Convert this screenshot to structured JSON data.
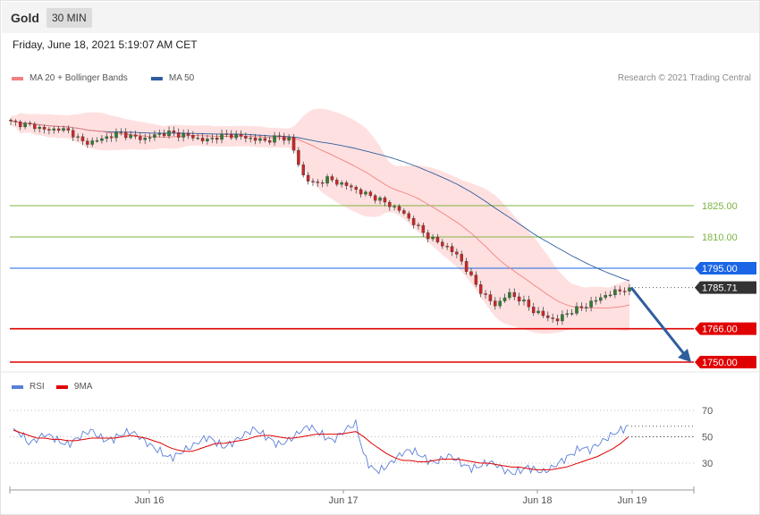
{
  "header": {
    "instrument": "Gold",
    "timeframe": "30 MIN"
  },
  "timestamp": "Friday, June 18, 2021 5:19:07 AM CET",
  "copyright": "Research © 2021 Trading Central",
  "colors": {
    "ma20": "#f08080",
    "ma50": "#2f5d9e",
    "bands": "#ffd6d6",
    "bull": "#2e7d32",
    "bear": "#c62828",
    "support": "#e00000",
    "resistance": "#7cb342",
    "pivot": "#1a66e6",
    "rsi": "#5b7fd8",
    "rsi_ma": "#e00000",
    "arrow": "#2f5d9e"
  },
  "chart_data": [
    {
      "type": "candlestick",
      "legend": [
        {
          "name": "MA 20 + Bollinger Bands",
          "color": "#f08080"
        },
        {
          "name": "MA 50",
          "color": "#2f5d9e"
        }
      ],
      "x_tick_labels": [
        "Jun 16",
        "Jun 17",
        "Jun 18",
        "Jun 19"
      ],
      "ylim": [
        1745,
        1873
      ],
      "close_path": [
        1865,
        1864,
        1863,
        1861,
        1862,
        1860,
        1855,
        1856,
        1858,
        1860,
        1858,
        1857,
        1859,
        1860,
        1859,
        1858,
        1856,
        1858,
        1859,
        1858,
        1857,
        1856,
        1858,
        1857,
        1840,
        1835,
        1838,
        1836,
        1834,
        1831,
        1829,
        1826,
        1823,
        1818,
        1812,
        1808,
        1805,
        1800,
        1790,
        1782,
        1777,
        1783,
        1780,
        1775,
        1772,
        1770,
        1774,
        1776,
        1779,
        1782,
        1784,
        1785.71
      ],
      "levels": [
        {
          "label": "1825.00",
          "value": 1825.0,
          "style": "resistance"
        },
        {
          "label": "1810.00",
          "value": 1810.0,
          "style": "resistance"
        },
        {
          "label": "1795.00",
          "value": 1795.0,
          "style": "pivot"
        },
        {
          "label": "1785.71",
          "value": 1785.71,
          "style": "last"
        },
        {
          "label": "1766.00",
          "value": 1766.0,
          "style": "support"
        },
        {
          "label": "1750.00",
          "value": 1750.0,
          "style": "support"
        }
      ],
      "arrow": {
        "from": 1785.71,
        "to": 1750.0,
        "direction": "down"
      }
    },
    {
      "type": "line",
      "legend": [
        {
          "name": "RSI",
          "color": "#5b7fd8"
        },
        {
          "name": "9MA",
          "color": "#e00000"
        }
      ],
      "y_tick_labels": [
        "70",
        "50",
        "30"
      ],
      "ylim": [
        15,
        80
      ],
      "rsi": [
        55,
        52,
        45,
        48,
        52,
        50,
        46,
        44,
        48,
        52,
        55,
        50,
        47,
        49,
        52,
        54,
        51,
        46,
        42,
        38,
        34,
        36,
        40,
        43,
        47,
        50,
        46,
        42,
        45,
        49,
        53,
        56,
        52,
        48,
        44,
        46,
        50,
        55,
        58,
        54,
        50,
        47,
        52,
        57,
        60,
        36,
        26,
        24,
        28,
        33,
        38,
        40,
        37,
        33,
        30,
        33,
        36,
        32,
        28,
        26,
        28,
        31,
        29,
        25,
        22,
        24,
        27,
        25,
        23,
        26,
        30,
        34,
        38,
        42,
        40,
        44,
        48,
        52,
        55,
        58
      ],
      "ma9": [
        55,
        53,
        51,
        49,
        49,
        48,
        48,
        47,
        47,
        48,
        49,
        49,
        49,
        49,
        50,
        51,
        50,
        49,
        47,
        45,
        42,
        40,
        39,
        39,
        41,
        43,
        45,
        45,
        46,
        47,
        48,
        50,
        51,
        51,
        50,
        49,
        49,
        50,
        51,
        52,
        52,
        52,
        52,
        53,
        54,
        50,
        45,
        41,
        37,
        34,
        32,
        32,
        31,
        31,
        32,
        33,
        33,
        33,
        32,
        31,
        30,
        30,
        29,
        28,
        27,
        27,
        26,
        25,
        25,
        25,
        26,
        27,
        29,
        31,
        33,
        35,
        38,
        41,
        45,
        50
      ]
    }
  ]
}
